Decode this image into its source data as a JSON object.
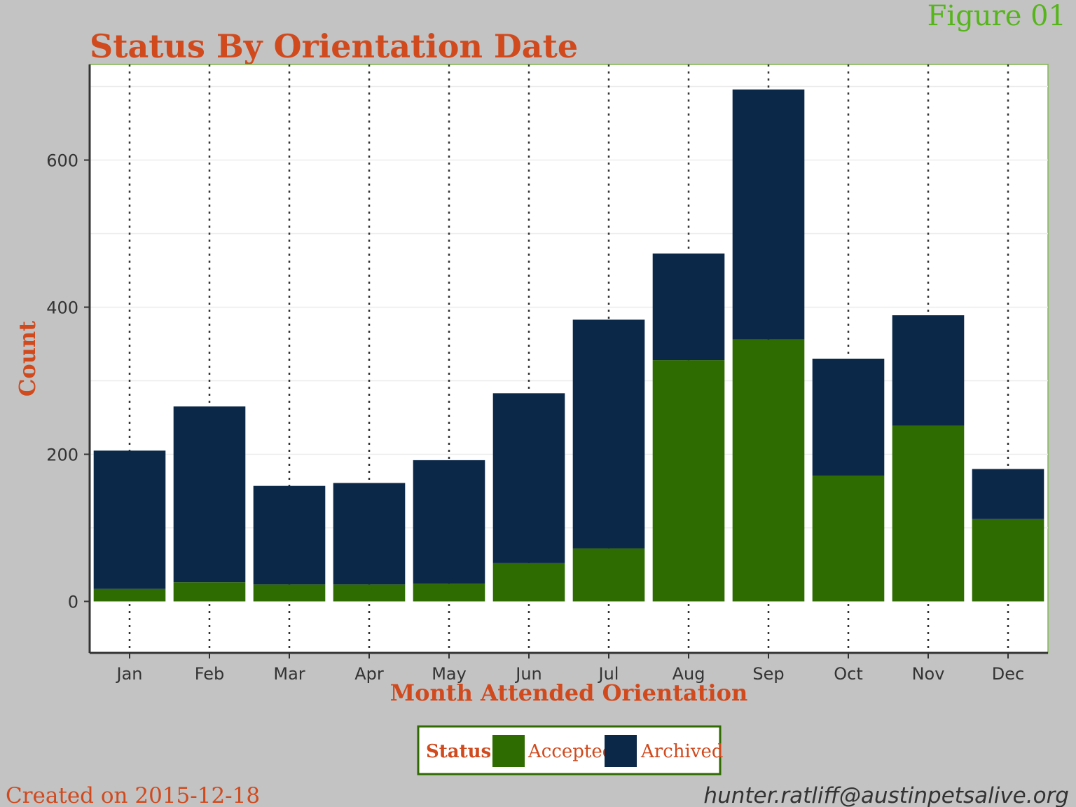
{
  "figure_label": "Figure 01",
  "footer": {
    "created": "Created on 2015-12-18",
    "email": "hunter.ratliff@austinpetsalive.org"
  },
  "colors": {
    "background": "#c3c3c3",
    "panel": "#ffffff",
    "title": "#d04a1e",
    "figure_label": "#55b51a",
    "accepted": "#2e6b00",
    "archived": "#0b2848",
    "vline": "#333333",
    "axis_text": "#333333"
  },
  "chart_data": {
    "type": "bar",
    "stacked": true,
    "title": "Status By Orientation Date",
    "xlabel": "Month Attended Orientation",
    "ylabel": "Count",
    "categories": [
      "Jan",
      "Feb",
      "Mar",
      "Apr",
      "May",
      "Jun",
      "Jul",
      "Aug",
      "Sep",
      "Oct",
      "Nov",
      "Dec"
    ],
    "series": [
      {
        "name": "Accepted",
        "values": [
          17,
          26,
          23,
          23,
          24,
          52,
          72,
          328,
          356,
          171,
          239,
          112
        ]
      },
      {
        "name": "Archived",
        "values": [
          188,
          239,
          134,
          138,
          168,
          231,
          311,
          145,
          340,
          159,
          150,
          68
        ]
      }
    ],
    "ylim": [
      -70,
      730
    ],
    "yticks": [
      0,
      200,
      400,
      600
    ],
    "grid": true,
    "legend_title": "Status",
    "legend_position": "bottom"
  }
}
